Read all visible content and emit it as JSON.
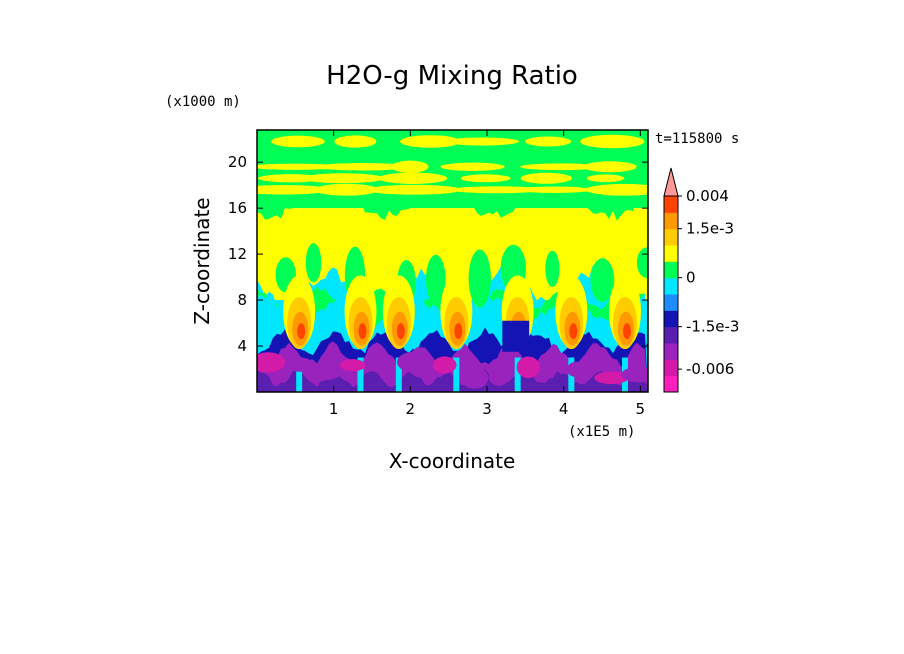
{
  "chart_data": {
    "type": "heatmap",
    "title": "H2O-g Mixing Ratio",
    "xlabel": "X-coordinate",
    "ylabel": "Z-coordinate",
    "x_unit": "(x1E5 m)",
    "y_unit": "(x1000 m)",
    "time_label": "t=115800 s",
    "xlim": [
      0,
      5.1
    ],
    "ylim": [
      0,
      22.8
    ],
    "x_ticks": [
      1,
      2,
      3,
      4,
      5
    ],
    "y_ticks": [
      4,
      8,
      12,
      16,
      20
    ],
    "colorbar": {
      "levels": [
        {
          "value": -0.0075,
          "color": "#ff1fbf"
        },
        {
          "value": -0.006,
          "color": "#d41aa8"
        },
        {
          "value": -0.0045,
          "color": "#9a22bd"
        },
        {
          "value": -0.003,
          "color": "#5a1fb0"
        },
        {
          "value": -0.0015,
          "color": "#1414b4"
        },
        {
          "value": -0.00075,
          "color": "#1e8cff"
        },
        {
          "value": -0.0003,
          "color": "#00e6ff"
        },
        {
          "value": 0,
          "color": "#00ff55"
        },
        {
          "value": 0.0005,
          "color": "#ffff00"
        },
        {
          "value": 0.001,
          "color": "#ffcc00"
        },
        {
          "value": 0.0015,
          "color": "#ff9900"
        },
        {
          "value": 0.0025,
          "color": "#ff4400"
        },
        {
          "value": 0.004,
          "color": "#ff9999"
        }
      ],
      "tick_labels": [
        "0.004",
        "1.5e-3",
        "0",
        "-1.5e-3",
        "-0.006"
      ]
    },
    "field_layers": [
      {
        "band": "near-surface",
        "z_range": [
          0,
          4
        ],
        "dominant_color": "#9a22bd"
      },
      {
        "band": "lower",
        "z_range": [
          3,
          8
        ],
        "dominant_color": "#00e6ff"
      },
      {
        "band": "middle",
        "z_range": [
          8,
          16
        ],
        "dominant_color": "#ffff00"
      },
      {
        "band": "upper",
        "z_range": [
          16,
          22.8
        ],
        "dominant_color": "#00ff55"
      }
    ],
    "plumes_x": [
      0.55,
      1.35,
      1.85,
      2.6,
      3.4,
      4.1,
      4.8
    ]
  }
}
